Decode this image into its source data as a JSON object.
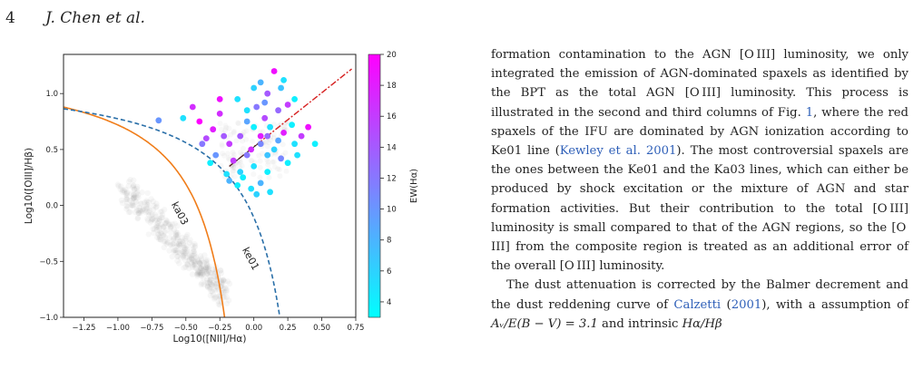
{
  "header": {
    "page_number": "4",
    "authors": "J. Chen et al."
  },
  "figure": {
    "colors": {
      "ka03": "#f07d1a",
      "ke01": "#2a6fa8",
      "diag": "#d62020"
    },
    "chart_data": {
      "type": "scatter",
      "xlabel": "Log10([NII]/Hα)",
      "ylabel": "Log10([OIII]/Hβ)",
      "xlim": [
        -1.4,
        0.75
      ],
      "ylim": [
        -1.0,
        1.35
      ],
      "x_ticks": [
        "−1.25",
        "−1.00",
        "−0.75",
        "−0.50",
        "−0.25",
        "0.00",
        "0.25",
        "0.50",
        "0.75"
      ],
      "y_ticks": [
        "−1.0",
        "−0.5",
        "0.0",
        "0.5",
        "1.0"
      ],
      "curve_labels": [
        "ka03",
        "ke01"
      ],
      "colorbar": {
        "label": "EW(Hα)",
        "min": 3,
        "max": 20,
        "ticks": [
          "4",
          "6",
          "8",
          "10",
          "12",
          "14",
          "16",
          "18",
          "20"
        ],
        "color_low": "#00ffff",
        "color_high": "#ff00ff"
      },
      "series": [
        {
          "points": [
            [
              -0.3,
              0.68,
              18
            ],
            [
              -0.22,
              0.62,
              14
            ],
            [
              -0.18,
              0.55,
              16
            ],
            [
              -0.25,
              0.82,
              17
            ],
            [
              -0.05,
              0.75,
              9
            ],
            [
              0.0,
              1.05,
              6
            ],
            [
              0.05,
              1.1,
              8
            ],
            [
              0.1,
              1.0,
              14
            ],
            [
              0.15,
              1.2,
              19
            ],
            [
              0.2,
              1.05,
              7
            ],
            [
              -0.12,
              0.95,
              5
            ],
            [
              0.02,
              0.88,
              12
            ],
            [
              0.08,
              0.78,
              15
            ],
            [
              0.12,
              0.7,
              5
            ],
            [
              0.18,
              0.85,
              13
            ],
            [
              0.22,
              0.65,
              18
            ],
            [
              0.25,
              0.9,
              16
            ],
            [
              0.28,
              0.72,
              4
            ],
            [
              0.3,
              0.55,
              5
            ],
            [
              0.05,
              0.55,
              11
            ],
            [
              0.1,
              0.45,
              7
            ],
            [
              0.0,
              0.35,
              5
            ],
            [
              -0.05,
              0.45,
              12
            ],
            [
              -0.1,
              0.3,
              6
            ],
            [
              -0.15,
              0.4,
              16
            ],
            [
              -0.08,
              0.25,
              4
            ],
            [
              -0.02,
              0.15,
              5
            ],
            [
              0.05,
              0.2,
              8
            ],
            [
              0.1,
              0.3,
              4
            ],
            [
              -0.2,
              0.28,
              5
            ],
            [
              -0.28,
              0.45,
              10
            ],
            [
              -0.35,
              0.6,
              15
            ],
            [
              -0.4,
              0.75,
              20
            ],
            [
              -0.45,
              0.88,
              17
            ],
            [
              -0.52,
              0.78,
              5
            ],
            [
              -0.7,
              0.76,
              10
            ],
            [
              -0.38,
              0.55,
              12
            ],
            [
              -0.32,
              0.38,
              4
            ],
            [
              0.15,
              0.5,
              6
            ],
            [
              0.2,
              0.42,
              11
            ],
            [
              0.25,
              0.38,
              4
            ],
            [
              0.32,
              0.45,
              5
            ],
            [
              0.35,
              0.62,
              16
            ],
            [
              0.4,
              0.7,
              19
            ],
            [
              0.45,
              0.55,
              4
            ],
            [
              0.1,
              0.62,
              13
            ],
            [
              0.0,
              0.7,
              4
            ],
            [
              -0.1,
              0.62,
              14
            ],
            [
              -0.05,
              0.85,
              5
            ],
            [
              0.08,
              0.92,
              10
            ],
            [
              0.3,
              0.95,
              4
            ],
            [
              -0.02,
              0.5,
              17
            ],
            [
              0.02,
              0.1,
              6
            ],
            [
              -0.12,
              0.18,
              4
            ],
            [
              -0.18,
              0.22,
              8
            ],
            [
              0.05,
              0.62,
              18
            ],
            [
              0.18,
              0.58,
              9
            ],
            [
              0.12,
              0.12,
              5
            ],
            [
              -0.25,
              0.95,
              19
            ],
            [
              0.22,
              1.12,
              5
            ]
          ]
        }
      ]
    }
  },
  "body": {
    "p1": {
      "a": "formation contamination to the AGN [O III] luminosity, we only integrated the emission of AGN-dominated spaxels as identified by the BPT as the total AGN [O III] luminosity. This process is illustrated in the second and third columns of Fig. ",
      "fig_ref": "1",
      "b": ", where the red spaxels of the IFU are dominated by AGN ionization according to Ke01 line (",
      "cite": "Kewley et al. 2001",
      "c": "). The most controversial spaxels are the ones between the Ke01 and the Ka03 lines, which can either be produced by shock excitation or the mixture of AGN and star formation activities. But their contribution to the total [O III] luminosity is small compared to that of the AGN regions, so the [O III] from the composite region is treated as an additional error of the overall [O III] luminosity."
    },
    "p2": {
      "a": "The dust attenuation is corrected by the Balmer decrement and the dust reddening curve of ",
      "cite": "Calzetti",
      "b": " (",
      "cite_year": "2001",
      "c": "), with a assumption of ",
      "math1": "Aᵥ/E(B − V) = 3.1",
      "d": " and intrinsic ",
      "math2": "Hα/Hβ"
    }
  }
}
